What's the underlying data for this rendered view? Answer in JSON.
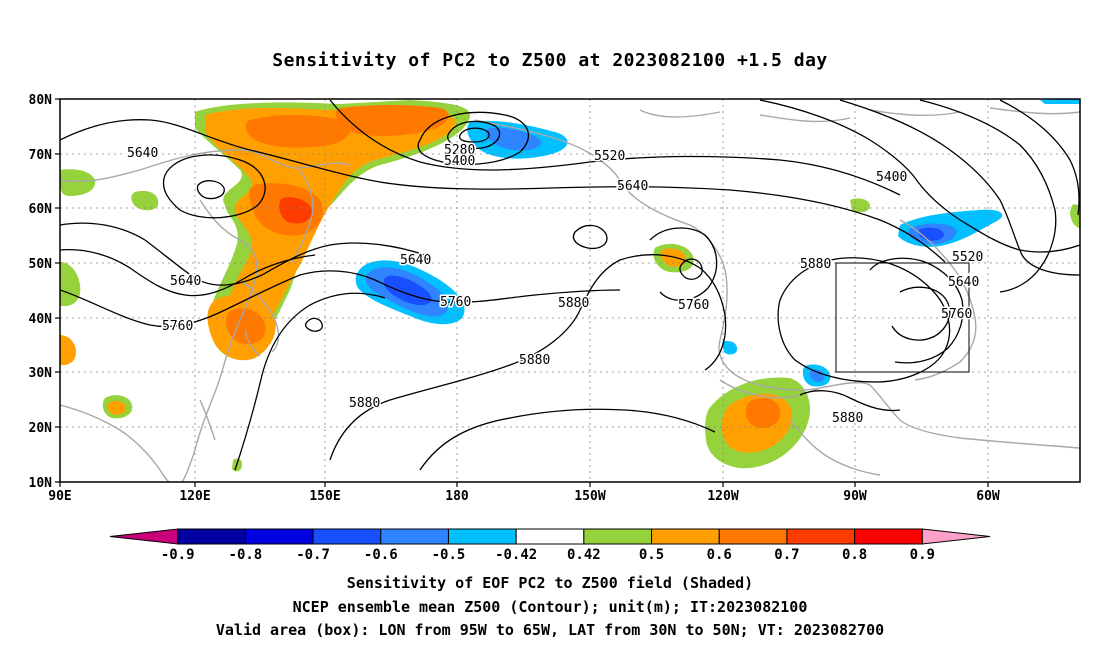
{
  "title": "Sensitivity of PC2 to Z500 at 2023082100 +1.5 day",
  "map": {
    "lat_ticks": [
      "80N",
      "70N",
      "60N",
      "50N",
      "40N",
      "30N",
      "20N",
      "10N"
    ],
    "lon_ticks": [
      "90E",
      "120E",
      "150E",
      "180",
      "150W",
      "120W",
      "90W",
      "60W"
    ],
    "valid_box": {
      "lon_west": "95W",
      "lon_east": "65W",
      "lat_south": "30N",
      "lat_north": "50N"
    }
  },
  "contour_labels": [
    "5640",
    "5640",
    "5760",
    "5280",
    "5400",
    "5520",
    "5640",
    "5400",
    "5640",
    "5760",
    "5880",
    "5880",
    "5880",
    "5760",
    "5880",
    "5520",
    "5640",
    "5760",
    "5880"
  ],
  "colorbar": {
    "colors": [
      "#c8007a",
      "#0000a0",
      "#0000e0",
      "#1850ff",
      "#2f84ff",
      "#00c0ff",
      "#ffffff",
      "#96d23c",
      "#ffa000",
      "#ff7800",
      "#ff3c00",
      "#ff0000",
      "#ffa0c8"
    ],
    "labels": [
      "-0.9",
      "-0.8",
      "-0.7",
      "-0.6",
      "-0.5",
      "-0.42",
      "0.42",
      "0.5",
      "0.6",
      "0.7",
      "0.8",
      "0.9"
    ]
  },
  "captions": [
    "Sensitivity of EOF PC2 to Z500 field (Shaded)",
    "NCEP ensemble mean Z500 (Contour); unit(m); IT:2023082100",
    "Valid area (box): LON from 95W to 65W, LAT from 30N to 50N; VT: 2023082700"
  ]
}
